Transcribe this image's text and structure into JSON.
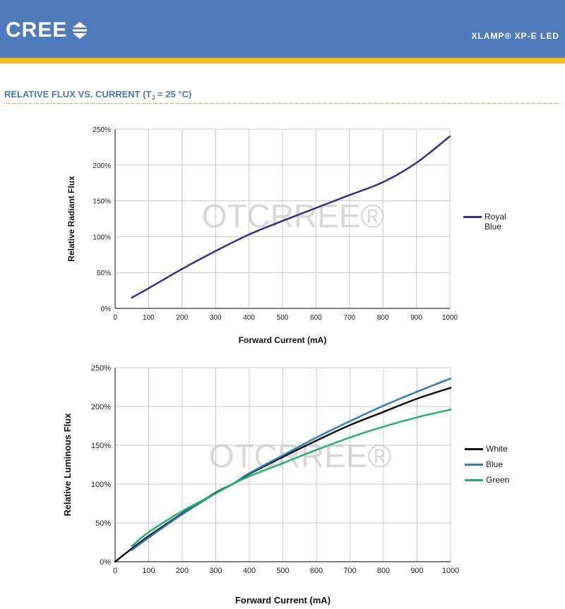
{
  "header": {
    "logo_text": "CREE",
    "logo_icon": "cree-arrows-icon",
    "product": "XLAMP® XP-E LED"
  },
  "section": {
    "title_main": "RELATIVE FLUX VS. CURRENT (T",
    "title_sub": "J",
    "title_end": " = 25 °C)"
  },
  "watermark": "OTCRREE®",
  "chart_data": [
    {
      "type": "line",
      "xlabel": "Forward Current (mA)",
      "ylabel": "Relative Radiant Flux",
      "xlim": [
        0,
        1000
      ],
      "ylim": [
        0,
        250
      ],
      "x_ticks": [
        "0",
        "100",
        "200",
        "300",
        "400",
        "500",
        "600",
        "700",
        "800",
        "900",
        "1000"
      ],
      "y_ticks": [
        "0%",
        "50%",
        "100%",
        "150%",
        "200%",
        "250%"
      ],
      "grid": true,
      "legend_position": "right",
      "series": [
        {
          "name": "Royal Blue",
          "color": "#3b2d8c",
          "x": [
            50,
            100,
            200,
            300,
            400,
            500,
            600,
            700,
            800,
            900,
            1000
          ],
          "y": [
            15,
            28,
            55,
            80,
            103,
            122,
            140,
            158,
            176,
            203,
            240
          ]
        }
      ]
    },
    {
      "type": "line",
      "xlabel": "Forward Current (mA)",
      "ylabel": "Relative Luminous Flux",
      "xlim": [
        0,
        1000
      ],
      "ylim": [
        0,
        250
      ],
      "x_ticks": [
        "0",
        "100",
        "200",
        "300",
        "400",
        "500",
        "600",
        "700",
        "800",
        "900",
        "1000"
      ],
      "y_ticks": [
        "0%",
        "50%",
        "100%",
        "150%",
        "200%",
        "250%"
      ],
      "grid": true,
      "legend_position": "right",
      "series": [
        {
          "name": "White",
          "color": "#111111",
          "x": [
            0,
            50,
            100,
            200,
            300,
            350,
            400,
            500,
            600,
            700,
            800,
            900,
            1000
          ],
          "y": [
            0,
            17,
            33,
            62,
            89,
            100,
            113,
            135,
            156,
            176,
            193,
            210,
            224
          ]
        },
        {
          "name": "Blue",
          "color": "#2e7dbe",
          "x": [
            50,
            100,
            200,
            300,
            350,
            400,
            500,
            600,
            700,
            800,
            900,
            1000
          ],
          "y": [
            15,
            31,
            61,
            88,
            100,
            114,
            137,
            160,
            181,
            201,
            219,
            236
          ]
        },
        {
          "name": "Green",
          "color": "#22b36a",
          "x": [
            50,
            100,
            200,
            300,
            350,
            400,
            500,
            600,
            700,
            800,
            900,
            1000
          ],
          "y": [
            20,
            38,
            65,
            88,
            100,
            110,
            127,
            144,
            160,
            174,
            186,
            196
          ]
        }
      ]
    }
  ]
}
